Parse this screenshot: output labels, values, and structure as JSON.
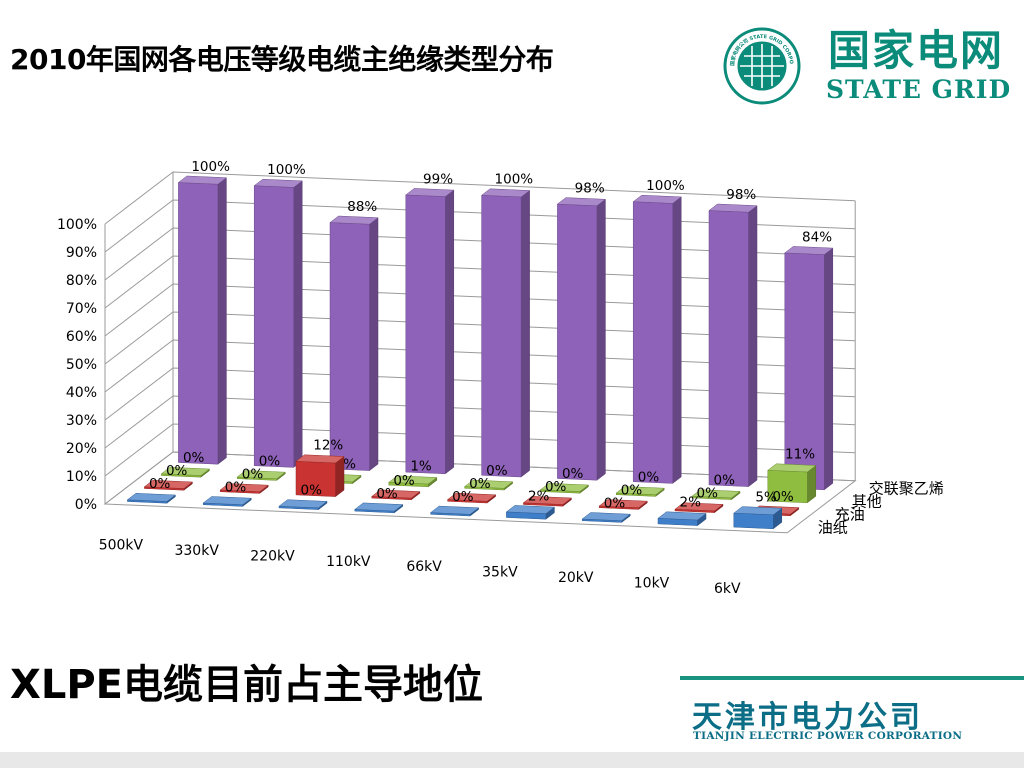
{
  "slide": {
    "title": "2010年国网各电压等级电缆主绝缘类型分布",
    "conclusion": "XLPE电缆目前占主导地位"
  },
  "logo": {
    "cn": "国家电网",
    "en": "STATE GRID",
    "seal_text": "国家电网公司 STATE GRID CORPORATION OF CHINA"
  },
  "footer": {
    "cn": "天津市电力公司",
    "en": "TIANJIN ELECTRIC POWER CORPORATION"
  },
  "colors": {
    "brand_green": "#0b8b7a",
    "footer_blue": "#0b6d86",
    "xlpe": "#8e62b8",
    "other": "#8fbd40",
    "oil_filled": "#c93432",
    "oil_paper": "#3f7ec9"
  },
  "chart_data": {
    "type": "bar",
    "variant": "3d-grouped-by-depth",
    "categories": [
      "500kV",
      "330kV",
      "220kV",
      "110kV",
      "66kV",
      "35kV",
      "20kV",
      "10kV",
      "6kV"
    ],
    "series": [
      {
        "name": "交联聚乙烯",
        "values": [
          100,
          100,
          88,
          99,
          100,
          98,
          100,
          98,
          84
        ],
        "labels": [
          "100%",
          "100%",
          "88%",
          "99%",
          "100%",
          "98%",
          "100%",
          "98%",
          "84%"
        ]
      },
      {
        "name": "其他",
        "values": [
          0,
          0,
          0,
          1,
          0,
          0,
          0,
          0,
          11
        ],
        "labels": [
          "0%",
          "0%",
          "0%",
          "1%",
          "0%",
          "0%",
          "0%",
          "0%",
          "11%"
        ]
      },
      {
        "name": "充油",
        "values": [
          0,
          0,
          12,
          0,
          0,
          0,
          0,
          0,
          0
        ],
        "labels": [
          "0%",
          "0%",
          "12%",
          "0%",
          "0%",
          "0%",
          "0%",
          "0%",
          "0%"
        ]
      },
      {
        "name": "油纸",
        "values": [
          0,
          0,
          0,
          0,
          0,
          2,
          0,
          2,
          5
        ],
        "labels": [
          "0%",
          "0%",
          "0%",
          "0%",
          "0%",
          "2%",
          "0%",
          "2%",
          "5%"
        ]
      }
    ],
    "y_ticks": [
      "0%",
      "10%",
      "20%",
      "30%",
      "40%",
      "50%",
      "60%",
      "70%",
      "80%",
      "90%",
      "100%"
    ],
    "ylim": [
      0,
      100
    ],
    "grid": true,
    "legend_position": "right (depth axis labels)"
  }
}
